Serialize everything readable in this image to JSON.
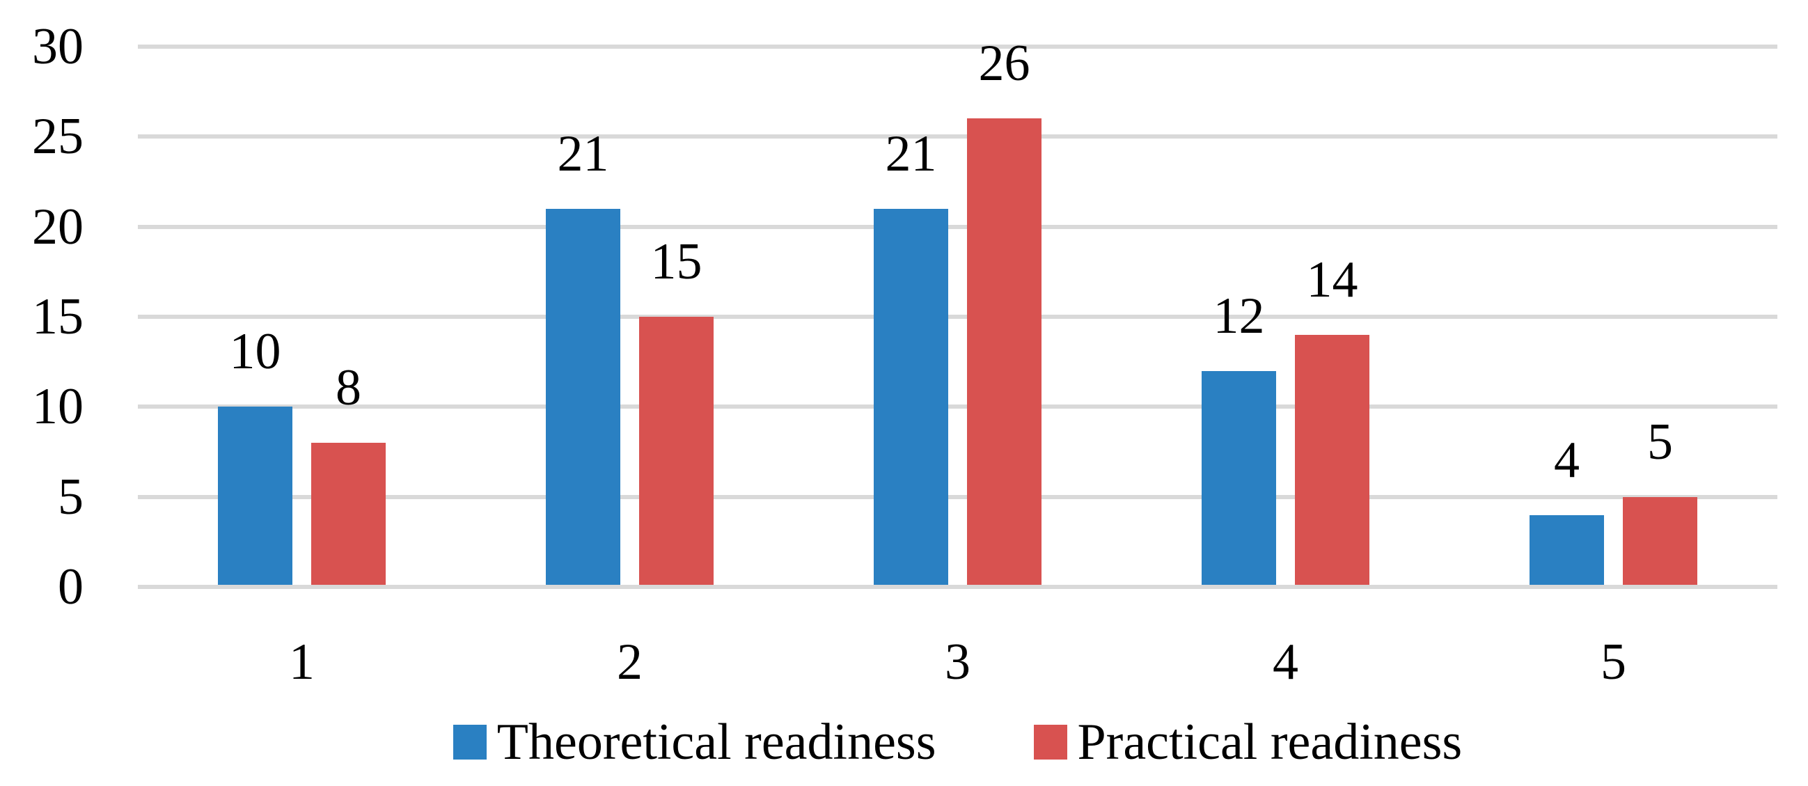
{
  "figure": {
    "background_color": "#FFFFFF",
    "text_color": "#000000"
  },
  "chart_data": {
    "type": "bar",
    "title": "",
    "xlabel": "",
    "ylabel": "",
    "categories": [
      "1",
      "2",
      "3",
      "4",
      "5"
    ],
    "series": [
      {
        "name": "Theoretical readiness",
        "color": "#2A80C2",
        "values": [
          10,
          21,
          21,
          12,
          4
        ]
      },
      {
        "name": "Practical readiness",
        "color": "#D85250",
        "values": [
          8,
          15,
          26,
          14,
          5
        ]
      }
    ],
    "ylim": [
      0,
      30
    ],
    "yticks": [
      0,
      5,
      10,
      15,
      20,
      25,
      30
    ],
    "grid": "horizontal",
    "gridline_color": "#D9D9D9",
    "legend_position": "bottom",
    "data_labels": "outside-end"
  }
}
